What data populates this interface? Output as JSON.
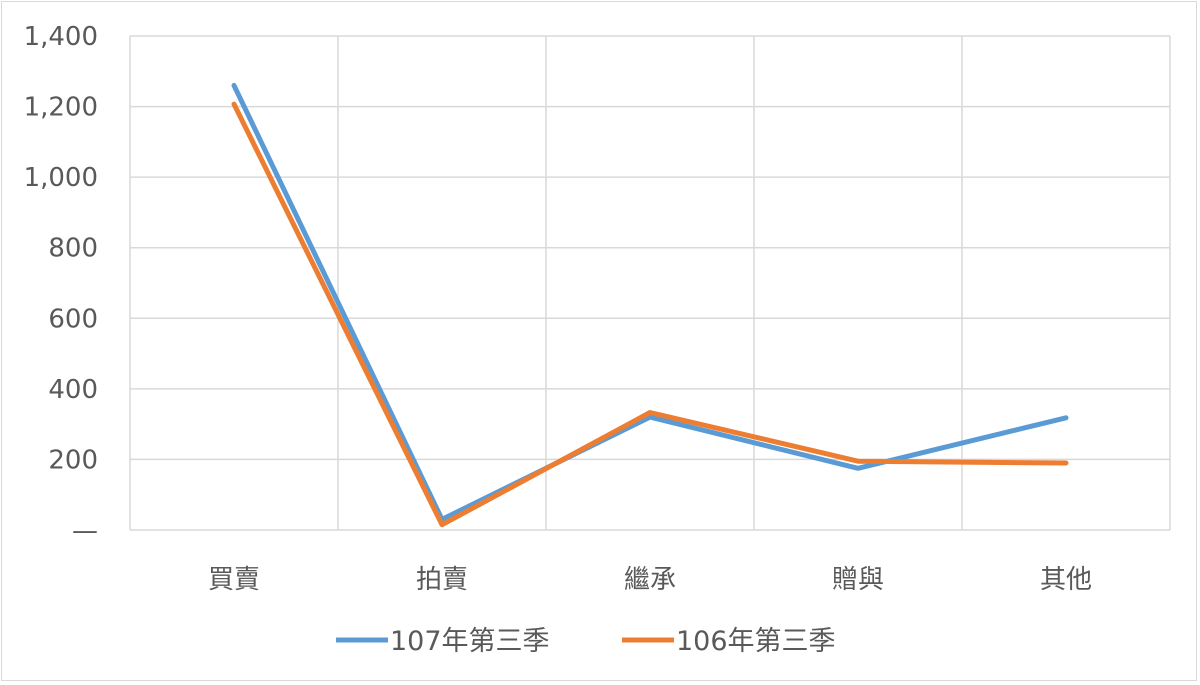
{
  "chart_data": {
    "type": "line",
    "categories": [
      "買賣",
      "拍賣",
      "繼承",
      "贈與",
      "其他"
    ],
    "series": [
      {
        "name": "107年第三季",
        "color": "#5b9bd5",
        "values": [
          1260,
          30,
          320,
          175,
          318
        ]
      },
      {
        "name": "106年第三季",
        "color": "#ed7d31",
        "values": [
          1207,
          15,
          333,
          195,
          190
        ]
      }
    ],
    "y_ticks": [
      {
        "value": 0,
        "label": "—"
      },
      {
        "value": 200,
        "label": "200"
      },
      {
        "value": 400,
        "label": "400"
      },
      {
        "value": 600,
        "label": "600"
      },
      {
        "value": 800,
        "label": "800"
      },
      {
        "value": 1000,
        "label": "1,000"
      },
      {
        "value": 1200,
        "label": "1,200"
      },
      {
        "value": 1400,
        "label": "1,400"
      }
    ],
    "ylim": [
      0,
      1400
    ],
    "grid": "on",
    "legend_position": "bottom",
    "gridline_color": "#d9d9d9",
    "axis_text_color": "#595959"
  }
}
